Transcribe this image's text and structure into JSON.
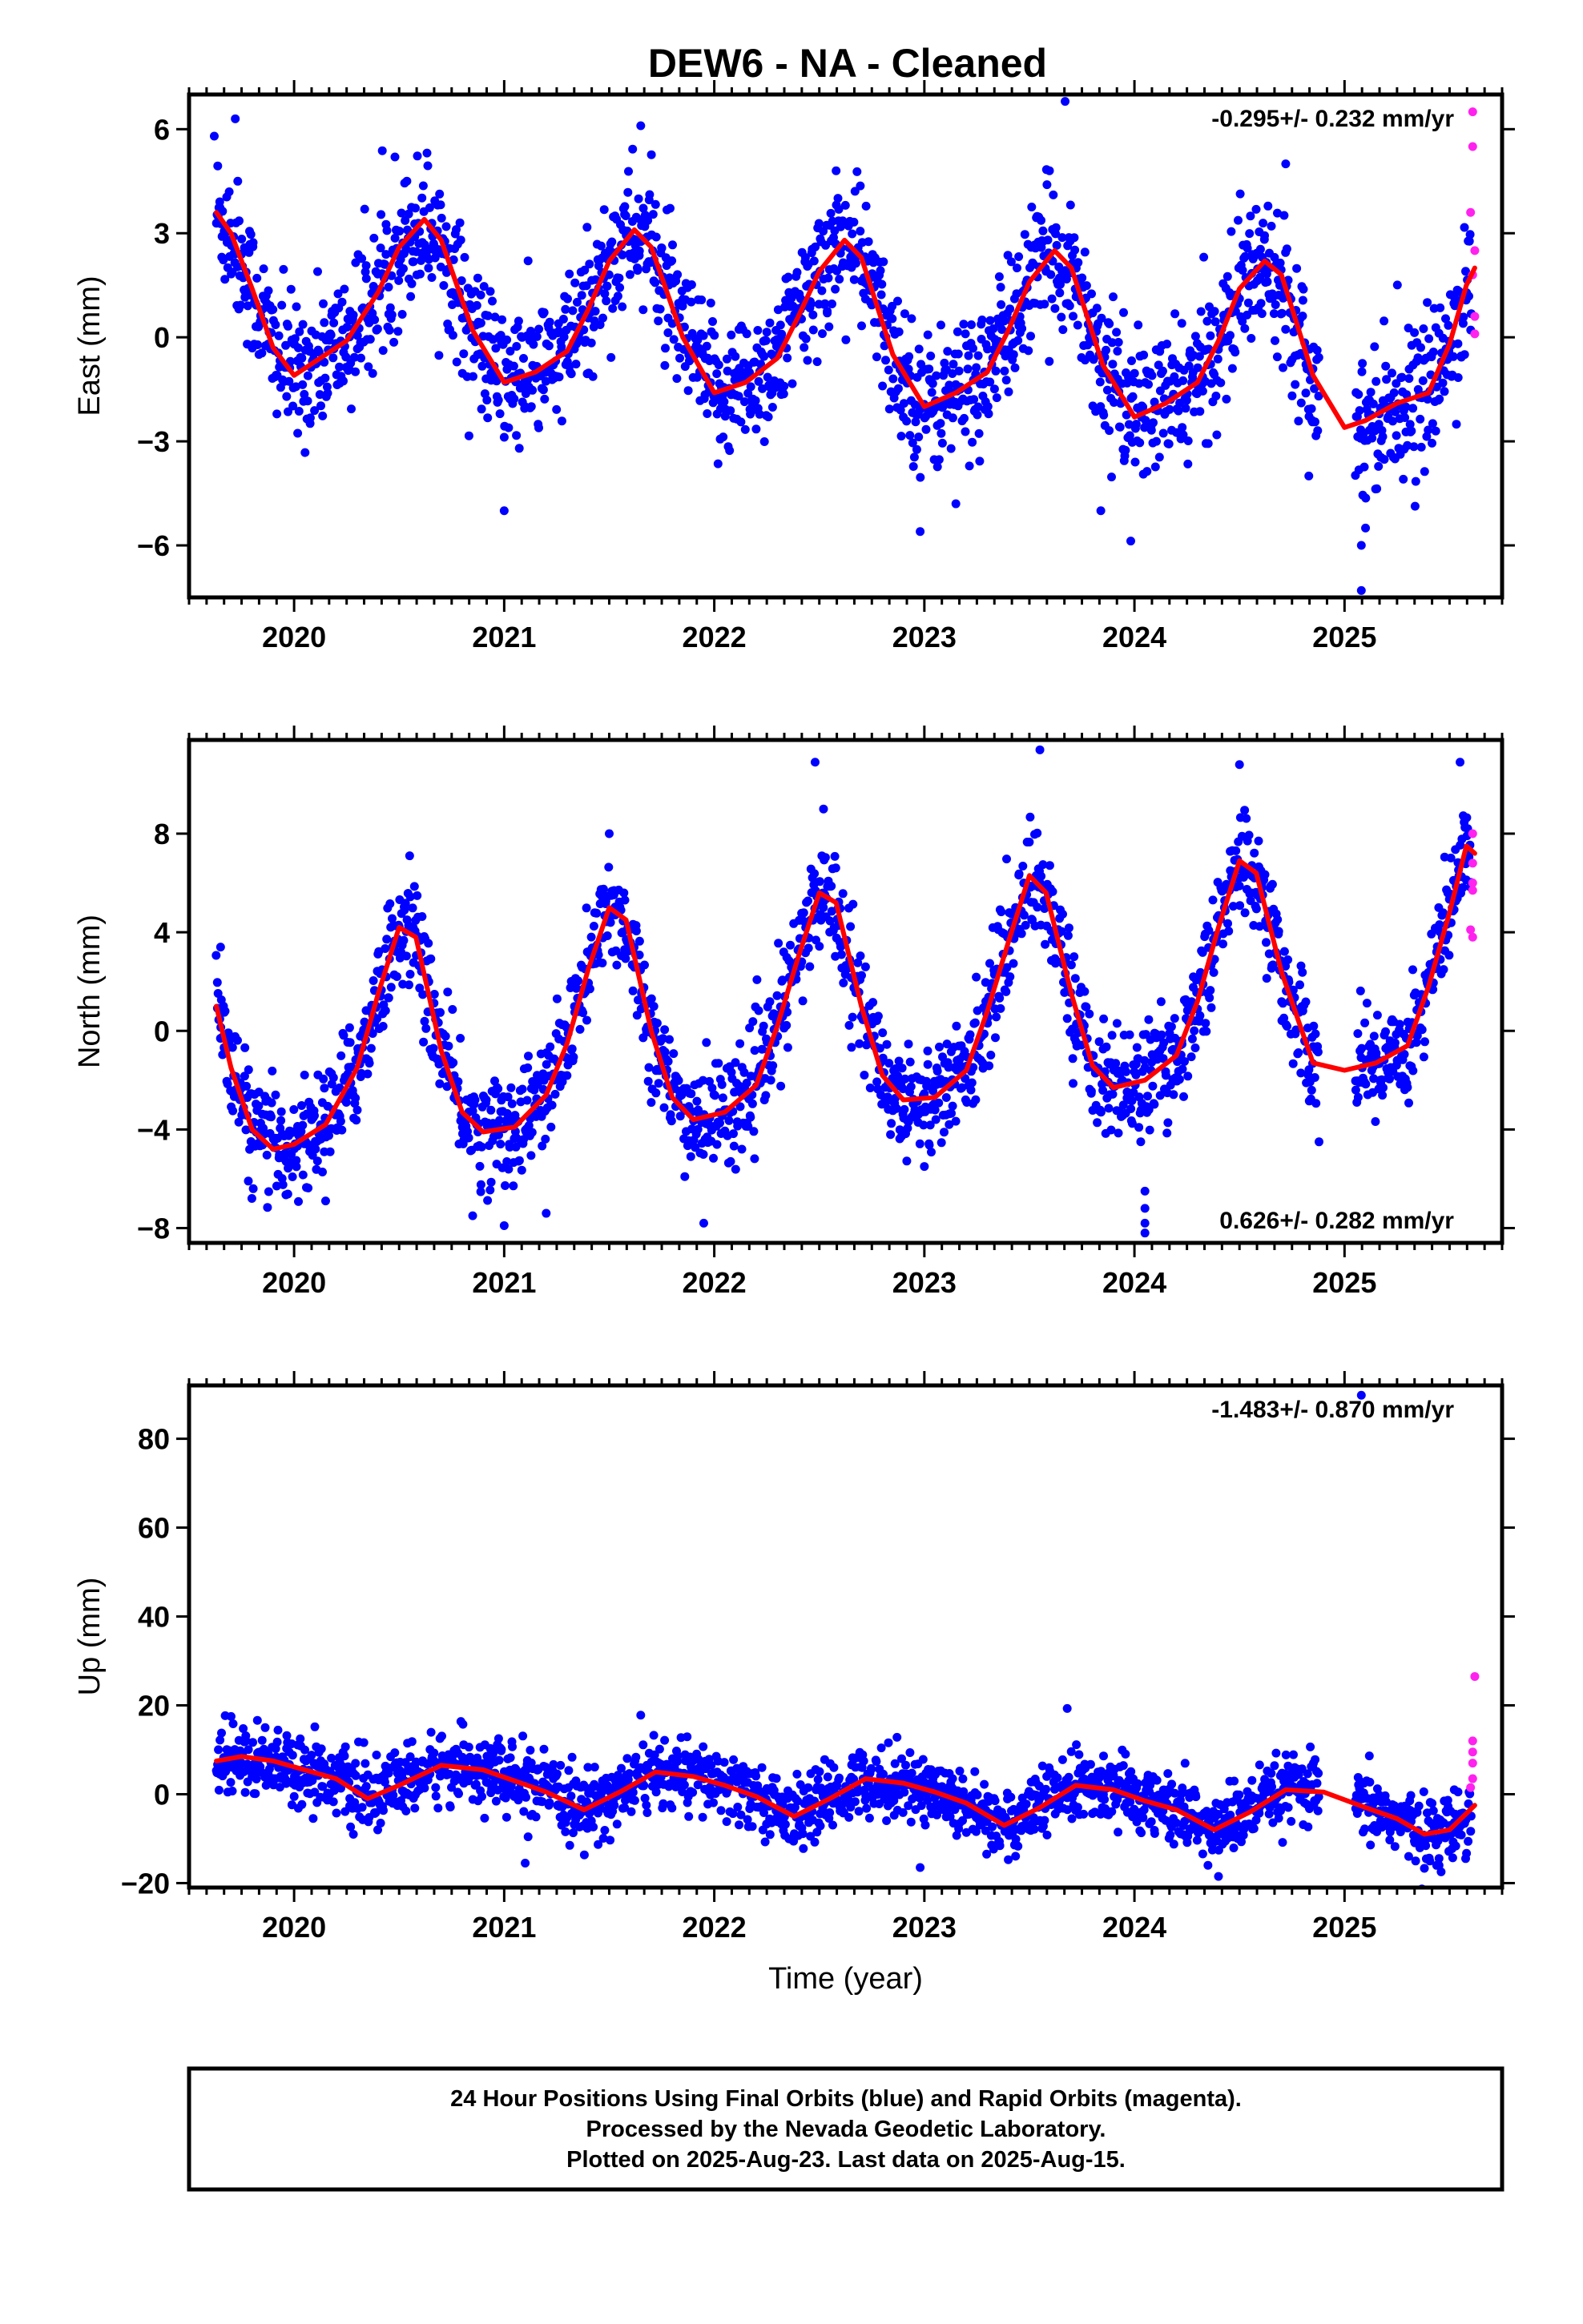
{
  "title": "DEW6  - NA - Cleaned",
  "colors": {
    "final": "#0000ff",
    "rapid": "#ff22ee",
    "model": "#ff0000",
    "frame": "#000000"
  },
  "chart_data": [
    {
      "type": "scatter",
      "name": "east",
      "ylabel": "East (mm)",
      "xlabel": "",
      "rate": "-0.295+/- 0.232 mm/yr",
      "rate_position": "top-right",
      "xlim": [
        2019.5,
        2025.75
      ],
      "ylim": [
        -7.5,
        7.0
      ],
      "yticks": [
        -6,
        -3,
        0,
        3,
        6
      ],
      "ytick_labels": [
        "−6",
        "−3",
        "0",
        "3",
        "6"
      ],
      "xticks": [
        2020,
        2021,
        2022,
        2023,
        2024,
        2025
      ],
      "xtick_labels": [
        "2020",
        "2021",
        "2022",
        "2023",
        "2024",
        "2025"
      ],
      "model_curve": {
        "x": [
          2019.63,
          2019.7,
          2019.8,
          2019.9,
          2020.0,
          2020.1,
          2020.25,
          2020.4,
          2020.5,
          2020.62,
          2020.7,
          2020.85,
          2021.0,
          2021.15,
          2021.3,
          2021.4,
          2021.5,
          2021.62,
          2021.7,
          2021.85,
          2022.0,
          2022.15,
          2022.3,
          2022.4,
          2022.5,
          2022.62,
          2022.7,
          2022.85,
          2023.0,
          2023.15,
          2023.3,
          2023.4,
          2023.5,
          2023.62,
          2023.7,
          2023.85,
          2024.0,
          2024.15,
          2024.3,
          2024.4,
          2024.5,
          2024.62,
          2024.7,
          2024.85,
          2025.0,
          2025.1,
          2025.25,
          2025.4,
          2025.5,
          2025.58,
          2025.62
        ],
        "y": [
          3.6,
          3.0,
          1.4,
          -0.3,
          -1.1,
          -0.7,
          -0.1,
          1.3,
          2.6,
          3.4,
          2.8,
          0.2,
          -1.3,
          -1.0,
          -0.4,
          0.8,
          2.2,
          3.1,
          2.6,
          0.0,
          -1.6,
          -1.3,
          -0.6,
          0.6,
          1.9,
          2.8,
          2.3,
          -0.5,
          -2.0,
          -1.6,
          -1.0,
          0.2,
          1.6,
          2.5,
          2.0,
          -0.8,
          -2.3,
          -1.9,
          -1.3,
          -0.1,
          1.4,
          2.2,
          1.8,
          -1.1,
          -2.6,
          -2.4,
          -1.9,
          -1.6,
          -0.2,
          1.5,
          2.0
        ]
      },
      "scatter_sd": 1.0,
      "outliers": [
        {
          "x": 2019.72,
          "y": 6.3
        },
        {
          "x": 2019.62,
          "y": 5.8
        },
        {
          "x": 2020.48,
          "y": 5.2
        },
        {
          "x": 2021.65,
          "y": 6.1
        },
        {
          "x": 2023.67,
          "y": 6.8
        },
        {
          "x": 2021.0,
          "y": -5.0
        },
        {
          "x": 2022.98,
          "y": -5.6
        },
        {
          "x": 2023.15,
          "y": -4.8
        },
        {
          "x": 2023.84,
          "y": -5.0
        },
        {
          "x": 2025.08,
          "y": -7.3
        },
        {
          "x": 2025.08,
          "y": -6.0
        },
        {
          "x": 2025.1,
          "y": -5.5
        },
        {
          "x": 2024.83,
          "y": -4.0
        },
        {
          "x": 2024.72,
          "y": 5.0
        },
        {
          "x": 2022.58,
          "y": 4.8
        }
      ],
      "rapid": [
        {
          "x": 2025.61,
          "y": 6.5
        },
        {
          "x": 2025.61,
          "y": 5.5
        },
        {
          "x": 2025.6,
          "y": 3.6
        },
        {
          "x": 2025.62,
          "y": 2.5
        },
        {
          "x": 2025.61,
          "y": 1.8
        },
        {
          "x": 2025.62,
          "y": 0.6
        },
        {
          "x": 2025.62,
          "y": 0.1
        }
      ],
      "gaps": [
        [
          2024.88,
          2025.05
        ]
      ]
    },
    {
      "type": "scatter",
      "name": "north",
      "ylabel": "North (mm)",
      "xlabel": "",
      "rate": "0.626+/- 0.282 mm/yr",
      "rate_position": "bottom-right",
      "xlim": [
        2019.5,
        2025.75
      ],
      "ylim": [
        -8.6,
        11.8
      ],
      "yticks": [
        -8,
        -4,
        0,
        4,
        8
      ],
      "ytick_labels": [
        "−8",
        "−4",
        "0",
        "4",
        "8"
      ],
      "xticks": [
        2020,
        2021,
        2022,
        2023,
        2024,
        2025
      ],
      "xtick_labels": [
        "2020",
        "2021",
        "2022",
        "2023",
        "2024",
        "2025"
      ],
      "model_curve": {
        "x": [
          2019.63,
          2019.7,
          2019.8,
          2019.9,
          2020.0,
          2020.15,
          2020.3,
          2020.4,
          2020.5,
          2020.58,
          2020.7,
          2020.8,
          2020.9,
          2021.05,
          2021.2,
          2021.3,
          2021.4,
          2021.5,
          2021.58,
          2021.7,
          2021.8,
          2021.9,
          2022.05,
          2022.2,
          2022.3,
          2022.4,
          2022.5,
          2022.58,
          2022.7,
          2022.8,
          2022.9,
          2023.05,
          2023.2,
          2023.3,
          2023.4,
          2023.5,
          2023.58,
          2023.7,
          2023.8,
          2023.9,
          2024.05,
          2024.2,
          2024.3,
          2024.4,
          2024.5,
          2024.58,
          2024.7,
          2024.85,
          2025.0,
          2025.15,
          2025.3,
          2025.4,
          2025.5,
          2025.58,
          2025.62
        ],
        "y": [
          1.0,
          -1.5,
          -4.0,
          -4.8,
          -4.6,
          -3.8,
          -1.5,
          1.5,
          4.2,
          3.8,
          -0.8,
          -3.3,
          -4.1,
          -3.9,
          -2.6,
          -0.5,
          2.5,
          5.0,
          4.5,
          0.0,
          -2.7,
          -3.6,
          -3.3,
          -2.2,
          0.2,
          3.0,
          5.6,
          5.2,
          1.0,
          -1.8,
          -2.8,
          -2.7,
          -1.6,
          0.8,
          3.6,
          6.3,
          5.6,
          1.5,
          -1.4,
          -2.3,
          -2.0,
          -1.0,
          1.2,
          4.2,
          6.9,
          6.4,
          2.4,
          -1.3,
          -1.6,
          -1.3,
          -0.6,
          1.8,
          4.8,
          7.5,
          7.2
        ]
      },
      "scatter_sd": 1.1,
      "outliers": [
        {
          "x": 2019.65,
          "y": 3.4
        },
        {
          "x": 2020.55,
          "y": 7.1
        },
        {
          "x": 2021.5,
          "y": 8.0
        },
        {
          "x": 2022.48,
          "y": 10.9
        },
        {
          "x": 2022.52,
          "y": 9.0
        },
        {
          "x": 2023.55,
          "y": 11.4
        },
        {
          "x": 2024.5,
          "y": 10.8
        },
        {
          "x": 2025.55,
          "y": 10.9
        },
        {
          "x": 2020.85,
          "y": -7.5
        },
        {
          "x": 2021.0,
          "y": -7.9
        },
        {
          "x": 2021.2,
          "y": -7.4
        },
        {
          "x": 2021.95,
          "y": -7.8
        },
        {
          "x": 2023.0,
          "y": -5.5
        },
        {
          "x": 2024.05,
          "y": -6.5
        },
        {
          "x": 2024.05,
          "y": -7.2
        },
        {
          "x": 2024.05,
          "y": -7.8
        },
        {
          "x": 2024.05,
          "y": -8.2
        },
        {
          "x": 2024.03,
          "y": -4.5
        },
        {
          "x": 2020.15,
          "y": -6.9
        }
      ],
      "rapid": [
        {
          "x": 2025.61,
          "y": 8.0
        },
        {
          "x": 2025.61,
          "y": 6.8
        },
        {
          "x": 2025.61,
          "y": 6.0
        },
        {
          "x": 2025.61,
          "y": 5.7
        },
        {
          "x": 2025.6,
          "y": 4.1
        },
        {
          "x": 2025.61,
          "y": 3.8
        }
      ],
      "gaps": [
        [
          2024.88,
          2025.05
        ]
      ]
    },
    {
      "type": "scatter",
      "name": "up",
      "ylabel": "Up (mm)",
      "xlabel": "Time (year)",
      "rate": "-1.483+/- 0.870 mm/yr",
      "rate_position": "top-right",
      "xlim": [
        2019.5,
        2025.75
      ],
      "ylim": [
        -21,
        92
      ],
      "yticks": [
        -20,
        0,
        20,
        40,
        60,
        80
      ],
      "ytick_labels": [
        "−20",
        "0",
        "20",
        "40",
        "60",
        "80"
      ],
      "xticks": [
        2020,
        2021,
        2022,
        2023,
        2024,
        2025
      ],
      "xtick_labels": [
        "2020",
        "2021",
        "2022",
        "2023",
        "2024",
        "2025"
      ],
      "model_curve": {
        "x": [
          2019.63,
          2019.75,
          2019.9,
          2020.05,
          2020.2,
          2020.35,
          2020.5,
          2020.7,
          2020.9,
          2021.05,
          2021.2,
          2021.38,
          2021.55,
          2021.72,
          2021.9,
          2022.05,
          2022.2,
          2022.38,
          2022.55,
          2022.72,
          2022.9,
          2023.05,
          2023.2,
          2023.38,
          2023.55,
          2023.72,
          2023.9,
          2024.05,
          2024.2,
          2024.38,
          2024.55,
          2024.72,
          2024.9,
          2025.1,
          2025.25,
          2025.38,
          2025.5,
          2025.62
        ],
        "y": [
          7.5,
          8.5,
          7.5,
          5.5,
          3.5,
          -1.0,
          2.0,
          6.5,
          5.5,
          3.0,
          0.5,
          -3.5,
          0.5,
          5.0,
          4.0,
          2.0,
          -0.5,
          -5.0,
          -1.0,
          3.5,
          2.5,
          0.5,
          -2.0,
          -7.0,
          -3.0,
          2.0,
          1.0,
          -1.5,
          -3.5,
          -8.0,
          -4.0,
          1.0,
          0.5,
          -3.0,
          -5.5,
          -9.0,
          -8.0,
          -2.5
        ]
      },
      "scatter_sd": 3.8,
      "outliers": [
        {
          "x": 2025.08,
          "y": 89.8
        },
        {
          "x": 2019.7,
          "y": 17.5
        },
        {
          "x": 2021.65,
          "y": 17.8
        },
        {
          "x": 2023.68,
          "y": 19.3
        },
        {
          "x": 2022.98,
          "y": -16.5
        },
        {
          "x": 2021.1,
          "y": -15.5
        },
        {
          "x": 2024.4,
          "y": -18.5
        },
        {
          "x": 2024.35,
          "y": -16.0
        },
        {
          "x": 2025.45,
          "y": -16.0
        }
      ],
      "rapid": [
        {
          "x": 2025.62,
          "y": 26.5
        },
        {
          "x": 2025.61,
          "y": 12.0
        },
        {
          "x": 2025.61,
          "y": 9.5
        },
        {
          "x": 2025.61,
          "y": 7.0
        },
        {
          "x": 2025.61,
          "y": 3.5
        },
        {
          "x": 2025.6,
          "y": 1.5
        }
      ],
      "gaps": [
        [
          2024.88,
          2025.05
        ]
      ]
    }
  ],
  "footer": {
    "line1": "24 Hour Positions Using Final Orbits (blue) and Rapid Orbits (magenta).",
    "line2": "Processed by the Nevada Geodetic Laboratory.",
    "line3": "Plotted on 2025-Aug-23. Last data on 2025-Aug-15."
  }
}
